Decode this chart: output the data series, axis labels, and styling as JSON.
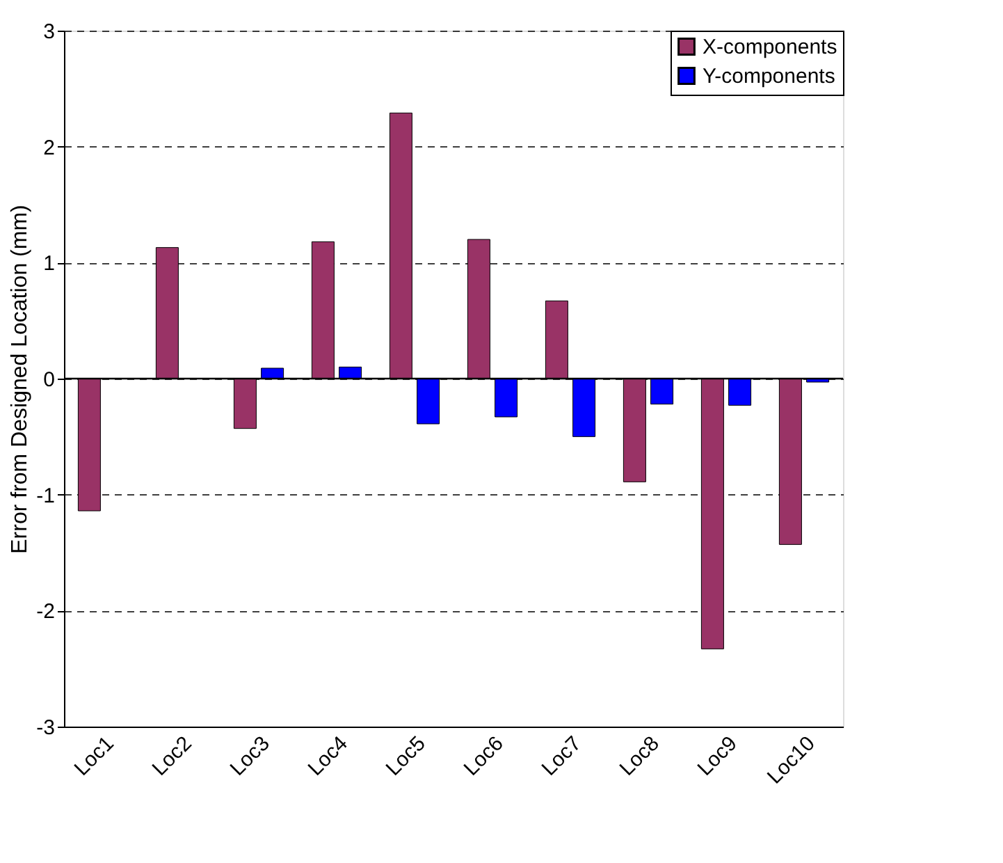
{
  "chart_data": {
    "type": "bar",
    "ylabel": "Error from Designed Location (mm)",
    "categories": [
      "Loc1",
      "Loc2",
      "Loc3",
      "Loc4",
      "Loc5",
      "Loc6",
      "Loc7",
      "Loc8",
      "Loc9",
      "Loc10"
    ],
    "series": [
      {
        "name": "X-components",
        "color": "#993366",
        "values": [
          -1.14,
          1.13,
          -0.43,
          1.18,
          2.29,
          1.2,
          0.67,
          -0.89,
          -2.33,
          -1.43
        ]
      },
      {
        "name": "Y-components",
        "color": "#0000ff",
        "values": [
          null,
          null,
          0.09,
          0.1,
          -0.39,
          -0.33,
          -0.5,
          -0.22,
          -0.23,
          -0.03
        ]
      }
    ],
    "ylim": [
      -3,
      3
    ],
    "yticks": [
      -3,
      -2,
      -1,
      0,
      1,
      2,
      3
    ],
    "grid": "y",
    "legend": "top right",
    "ref_lines": [
      {
        "axis": "y",
        "value": 0,
        "color": "#000000"
      }
    ]
  }
}
